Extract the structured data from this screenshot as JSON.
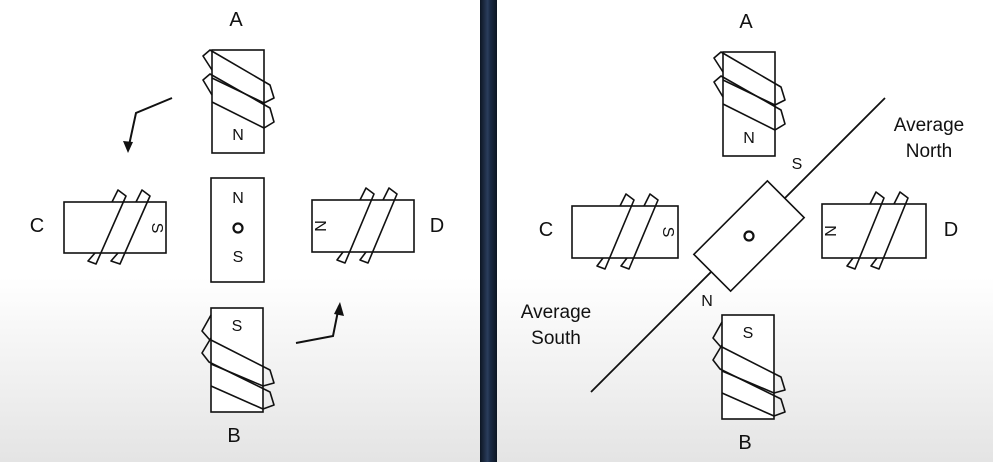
{
  "left_panel": {
    "labels": {
      "a": "A",
      "b": "B",
      "c": "C",
      "d": "D"
    },
    "pole_a": "N",
    "pole_b": "S",
    "pole_c": "S",
    "pole_d": "N",
    "rotor_top": "N",
    "rotor_bottom": "S"
  },
  "right_panel": {
    "labels": {
      "a": "A",
      "b": "B",
      "c": "C",
      "d": "D"
    },
    "pole_a": "N",
    "pole_b": "S",
    "pole_c": "S",
    "pole_d": "N",
    "rotor_s_label": "S",
    "rotor_n_label": "N",
    "average_north": [
      "Average",
      "North"
    ],
    "average_south": [
      "Average",
      "South"
    ]
  }
}
